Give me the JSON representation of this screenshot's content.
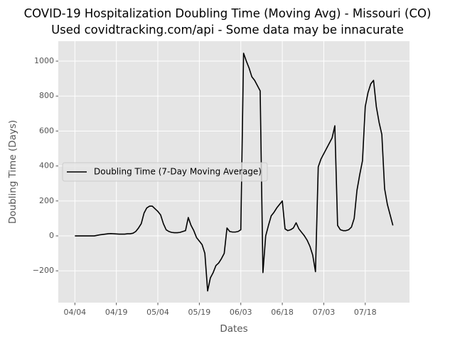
{
  "chart_data": {
    "type": "line",
    "title": "COVID-19 Hospitalization Doubling Time (Moving Avg) - Missouri (CO)",
    "subtitle": "Used covidtracking.com/api - Some data may be innacurate",
    "x_label": "Dates",
    "y_label": "Doubling Time (Days)",
    "x": [
      "04/04",
      "04/05",
      "04/06",
      "04/07",
      "04/08",
      "04/09",
      "04/10",
      "04/11",
      "04/12",
      "04/13",
      "04/14",
      "04/15",
      "04/16",
      "04/17",
      "04/18",
      "04/19",
      "04/20",
      "04/21",
      "04/22",
      "04/23",
      "04/24",
      "04/25",
      "04/26",
      "04/27",
      "04/28",
      "04/29",
      "04/30",
      "05/01",
      "05/02",
      "05/03",
      "05/04",
      "05/05",
      "05/06",
      "05/07",
      "05/08",
      "05/09",
      "05/10",
      "05/11",
      "05/12",
      "05/13",
      "05/14",
      "05/15",
      "05/16",
      "05/17",
      "05/18",
      "05/19",
      "05/20",
      "05/21",
      "05/22",
      "05/23",
      "05/24",
      "05/25",
      "05/26",
      "05/27",
      "05/28",
      "05/29",
      "05/30",
      "05/31",
      "06/01",
      "06/02",
      "06/03",
      "06/04",
      "06/05",
      "06/06",
      "06/07",
      "06/08",
      "06/09",
      "06/10",
      "06/11",
      "06/12",
      "06/13",
      "06/14",
      "06/15",
      "06/16",
      "06/17",
      "06/18",
      "06/19",
      "06/20",
      "06/21",
      "06/22",
      "06/23",
      "06/24",
      "06/25",
      "06/26",
      "06/27",
      "06/28",
      "06/29",
      "06/30",
      "07/01",
      "07/02",
      "07/03",
      "07/04",
      "07/05",
      "07/06",
      "07/07",
      "07/08",
      "07/09",
      "07/10",
      "07/11",
      "07/12",
      "07/13",
      "07/14",
      "07/15",
      "07/16",
      "07/17",
      "07/18",
      "07/19",
      "07/20",
      "07/21",
      "07/22",
      "07/23",
      "07/24",
      "07/25",
      "07/26",
      "07/27",
      "07/28"
    ],
    "series": [
      {
        "name": "Doubling Time (7-Day Moving Average)",
        "color": "#000000",
        "values": [
          0,
          0,
          0,
          0,
          0,
          0,
          0,
          0,
          3,
          6,
          8,
          10,
          12,
          13,
          12,
          11,
          10,
          10,
          10,
          12,
          12,
          15,
          25,
          45,
          70,
          130,
          160,
          170,
          170,
          155,
          140,
          120,
          70,
          35,
          25,
          20,
          18,
          18,
          20,
          25,
          30,
          105,
          60,
          30,
          -10,
          -30,
          -50,
          -100,
          -315,
          -240,
          -210,
          -170,
          -155,
          -130,
          -100,
          45,
          25,
          22,
          22,
          25,
          35,
          1045,
          1000,
          960,
          910,
          890,
          860,
          830,
          -210,
          0,
          60,
          115,
          135,
          160,
          180,
          200,
          40,
          30,
          35,
          45,
          75,
          40,
          20,
          0,
          -25,
          -60,
          -110,
          -205,
          395,
          440,
          470,
          500,
          530,
          560,
          630,
          60,
          35,
          30,
          30,
          35,
          50,
          100,
          260,
          350,
          430,
          740,
          820,
          870,
          890,
          740,
          650,
          580,
          270,
          180,
          120,
          60
        ]
      }
    ],
    "xlim": [
      "03/29",
      "08/03"
    ],
    "xticks": [
      "04/04",
      "04/19",
      "05/04",
      "05/19",
      "06/03",
      "06/18",
      "07/03",
      "07/18"
    ],
    "ylim": [
      -382,
      1114
    ],
    "yticks": [
      {
        "value": -200,
        "label": "−200"
      },
      0,
      200,
      400,
      600,
      800,
      1000
    ],
    "grid": true,
    "legend": "center left"
  }
}
